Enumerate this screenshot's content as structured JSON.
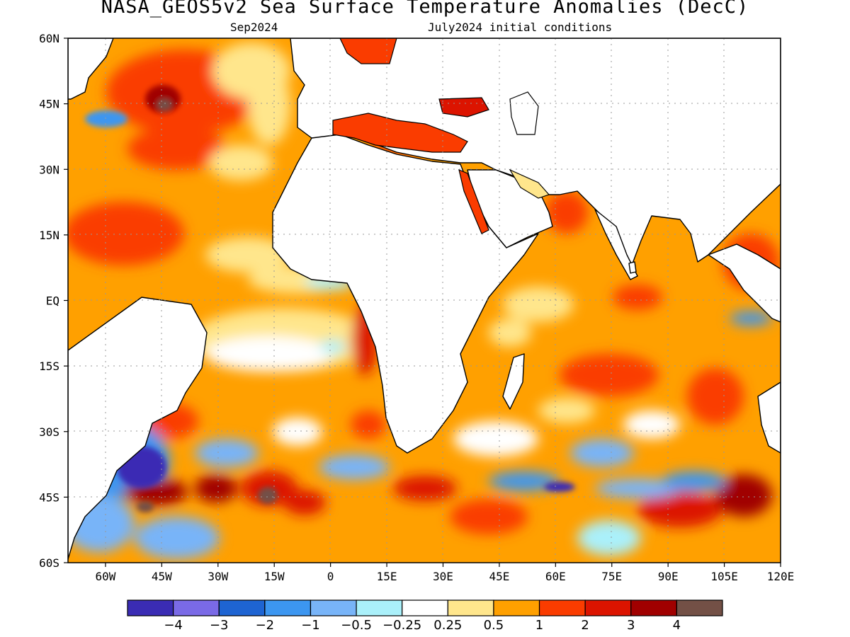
{
  "title": "NASA_GEOS5v2 Sea Surface Temperature Anomalies (DecC)",
  "subtitle_left": "Sep2024",
  "subtitle_right": "July2024 initial conditions",
  "map": {
    "projection": "equirectangular",
    "lon_range": [
      -70,
      120
    ],
    "lat_range": [
      -60,
      60
    ],
    "y_ticks": [
      "60N",
      "45N",
      "30N",
      "15N",
      "EQ",
      "15S",
      "30S",
      "45S",
      "60S"
    ],
    "x_ticks": [
      "60W",
      "45W",
      "30W",
      "15W",
      "0",
      "15E",
      "30E",
      "45E",
      "60E",
      "75E",
      "90E",
      "105E",
      "120E"
    ],
    "gridlines": "dotted"
  },
  "colorbar": {
    "colors": [
      "#3a2cb4",
      "#7a6ae6",
      "#1e64d2",
      "#3c96f0",
      "#78b4f8",
      "#aaf0fa",
      "#ffffff",
      "#ffe68c",
      "#ffa000",
      "#fa3c00",
      "#dc1400",
      "#a00000",
      "#735046"
    ],
    "labels": [
      "−4",
      "−3",
      "−2",
      "−1",
      "−0.5",
      "−0.25",
      "0.25",
      "0.5",
      "1",
      "2",
      "3",
      "4"
    ]
  }
}
